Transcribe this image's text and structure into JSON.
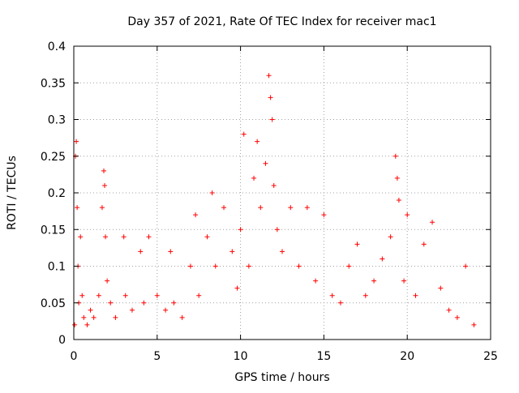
{
  "chart_data": {
    "type": "scatter",
    "title": "Day 357 of 2021, Rate Of TEC Index for receiver mac1",
    "xlabel": "GPS time / hours",
    "ylabel": "ROTI / TECUs",
    "xlim": [
      0,
      25
    ],
    "ylim": [
      0,
      0.4
    ],
    "xticks": [
      "0",
      "5",
      "10",
      "15",
      "20",
      "25"
    ],
    "yticks": [
      "0",
      "0.05",
      "0.1",
      "0.15",
      "0.2",
      "0.25",
      "0.3",
      "0.35",
      "0.4"
    ],
    "grid": true,
    "marker": "+",
    "color": "#ff0000",
    "series": [
      {
        "x": [
          0.05,
          0.1,
          0.15,
          0.2,
          0.25,
          0.3,
          0.4,
          0.5,
          0.6,
          0.8,
          1.0,
          1.2,
          1.5,
          1.7,
          1.8,
          1.85,
          1.9,
          2.0,
          2.2,
          2.5,
          3.0,
          3.1,
          3.5,
          4.0,
          4.2,
          4.5,
          5.0,
          5.5,
          5.8,
          6.0,
          6.5,
          7.0,
          7.3,
          7.5,
          8.0,
          8.3,
          8.5,
          9.0,
          9.5,
          9.8,
          10.0,
          10.2,
          10.5,
          10.8,
          11.0,
          11.2,
          11.5,
          11.7,
          11.8,
          11.9,
          12.0,
          12.2,
          12.5,
          13.0,
          13.5,
          14.0,
          14.5,
          15.0,
          15.5,
          16.0,
          16.5,
          17.0,
          17.5,
          18.0,
          18.5,
          19.0,
          19.3,
          19.4,
          19.5,
          19.8,
          20.0,
          20.5,
          21.0,
          21.5,
          22.0,
          22.5,
          23.0,
          23.5,
          24.0
        ],
        "y": [
          0.02,
          0.25,
          0.27,
          0.18,
          0.1,
          0.05,
          0.14,
          0.06,
          0.03,
          0.02,
          0.04,
          0.03,
          0.06,
          0.18,
          0.23,
          0.21,
          0.14,
          0.08,
          0.05,
          0.03,
          0.14,
          0.06,
          0.04,
          0.12,
          0.05,
          0.14,
          0.06,
          0.04,
          0.12,
          0.05,
          0.03,
          0.1,
          0.17,
          0.06,
          0.14,
          0.2,
          0.1,
          0.18,
          0.12,
          0.07,
          0.15,
          0.28,
          0.1,
          0.22,
          0.27,
          0.18,
          0.24,
          0.36,
          0.33,
          0.3,
          0.21,
          0.15,
          0.12,
          0.18,
          0.1,
          0.18,
          0.08,
          0.17,
          0.06,
          0.05,
          0.1,
          0.13,
          0.06,
          0.08,
          0.11,
          0.14,
          0.25,
          0.22,
          0.19,
          0.08,
          0.17,
          0.06,
          0.13,
          0.16,
          0.07,
          0.04,
          0.03,
          0.1,
          0.02
        ]
      }
    ]
  }
}
